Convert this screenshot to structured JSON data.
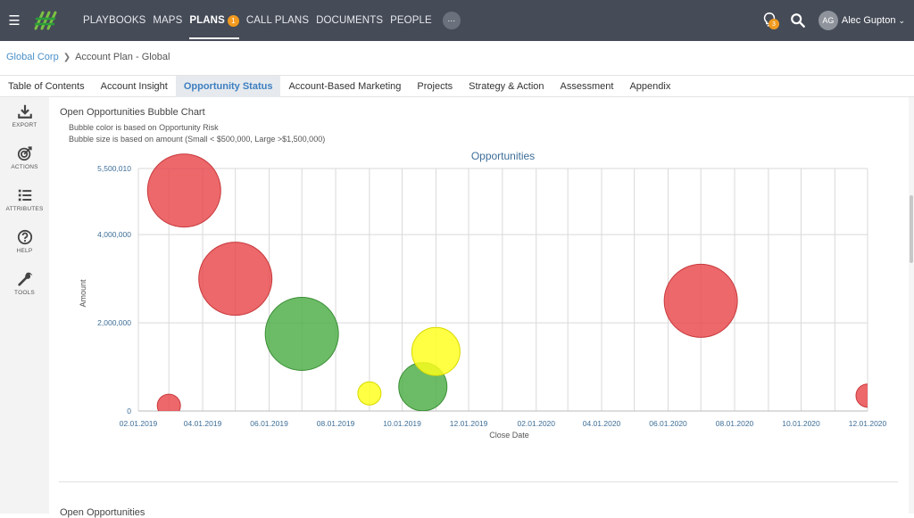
{
  "topbar": {
    "nav": [
      {
        "label": "PLAYBOOKS"
      },
      {
        "label": "MAPS"
      },
      {
        "label": "PLANS",
        "badge": "1",
        "active": true
      },
      {
        "label": "CALL PLANS"
      },
      {
        "label": "DOCUMENTS"
      },
      {
        "label": "PEOPLE"
      }
    ],
    "more_label": "···",
    "notifications_count": "3",
    "user_initials": "AG",
    "user_name": "Alec Gupton",
    "brand_color": "#454b57",
    "badge_color": "#f29a1f"
  },
  "breadcrumb": {
    "root": "Global Corp",
    "current": "Account Plan - Global"
  },
  "tabs": [
    {
      "label": "Table of Contents"
    },
    {
      "label": "Account Insight"
    },
    {
      "label": "Opportunity Status",
      "active": true
    },
    {
      "label": "Account-Based Marketing"
    },
    {
      "label": "Projects"
    },
    {
      "label": "Strategy & Action"
    },
    {
      "label": "Assessment"
    },
    {
      "label": "Appendix"
    }
  ],
  "sidebar": [
    {
      "label": "EXPORT",
      "icon": "download-icon"
    },
    {
      "label": "ACTIONS",
      "icon": "target-icon"
    },
    {
      "label": "ATTRIBUTES",
      "icon": "list-icon"
    },
    {
      "label": "HELP",
      "icon": "help-icon"
    },
    {
      "label": "TOOLS",
      "icon": "wrench-icon"
    }
  ],
  "content": {
    "title": "Open Opportunities Bubble Chart",
    "note1": "Bubble color is based on Opportunity Risk",
    "note2": "Bubble size is based on amount (Small < $500,000, Large >$1,500,000)",
    "next_section": "Open Opportunities"
  },
  "chart_data": {
    "type": "scatter",
    "title": "Opportunities",
    "xlabel": "Close Date",
    "ylabel": "Amount",
    "xlim": [
      "2019-02-01",
      "2020-12-01"
    ],
    "ylim": [
      0,
      5500010
    ],
    "x_ticks": [
      "02.01.2019",
      "04.01.2019",
      "06.01.2019",
      "08.01.2019",
      "10.01.2019",
      "12.01.2019",
      "02.01.2020",
      "04.01.2020",
      "06.01.2020",
      "08.01.2020",
      "10.01.2020",
      "12.01.2020"
    ],
    "y_ticks": [
      "0",
      "2,000,000",
      "4,000,000",
      "5,500,010"
    ],
    "grid": true,
    "colors": {
      "red": "#e8474a",
      "green": "#4cad45",
      "yellow": "#ffff1a"
    },
    "points": [
      {
        "date": "2019-03-01",
        "amount": 120000,
        "color": "red",
        "size": "small"
      },
      {
        "date": "2019-03-15",
        "amount": 5000000,
        "color": "red",
        "size": "large"
      },
      {
        "date": "2019-05-01",
        "amount": 3000000,
        "color": "red",
        "size": "large"
      },
      {
        "date": "2019-07-01",
        "amount": 1750000,
        "color": "green",
        "size": "large"
      },
      {
        "date": "2019-09-01",
        "amount": 400000,
        "color": "yellow",
        "size": "small"
      },
      {
        "date": "2019-10-20",
        "amount": 550000,
        "color": "green",
        "size": "medium"
      },
      {
        "date": "2019-11-01",
        "amount": 1350000,
        "color": "yellow",
        "size": "medium"
      },
      {
        "date": "2020-07-01",
        "amount": 2500000,
        "color": "red",
        "size": "large"
      },
      {
        "date": "2020-12-01",
        "amount": 350000,
        "color": "red",
        "size": "small"
      }
    ]
  }
}
